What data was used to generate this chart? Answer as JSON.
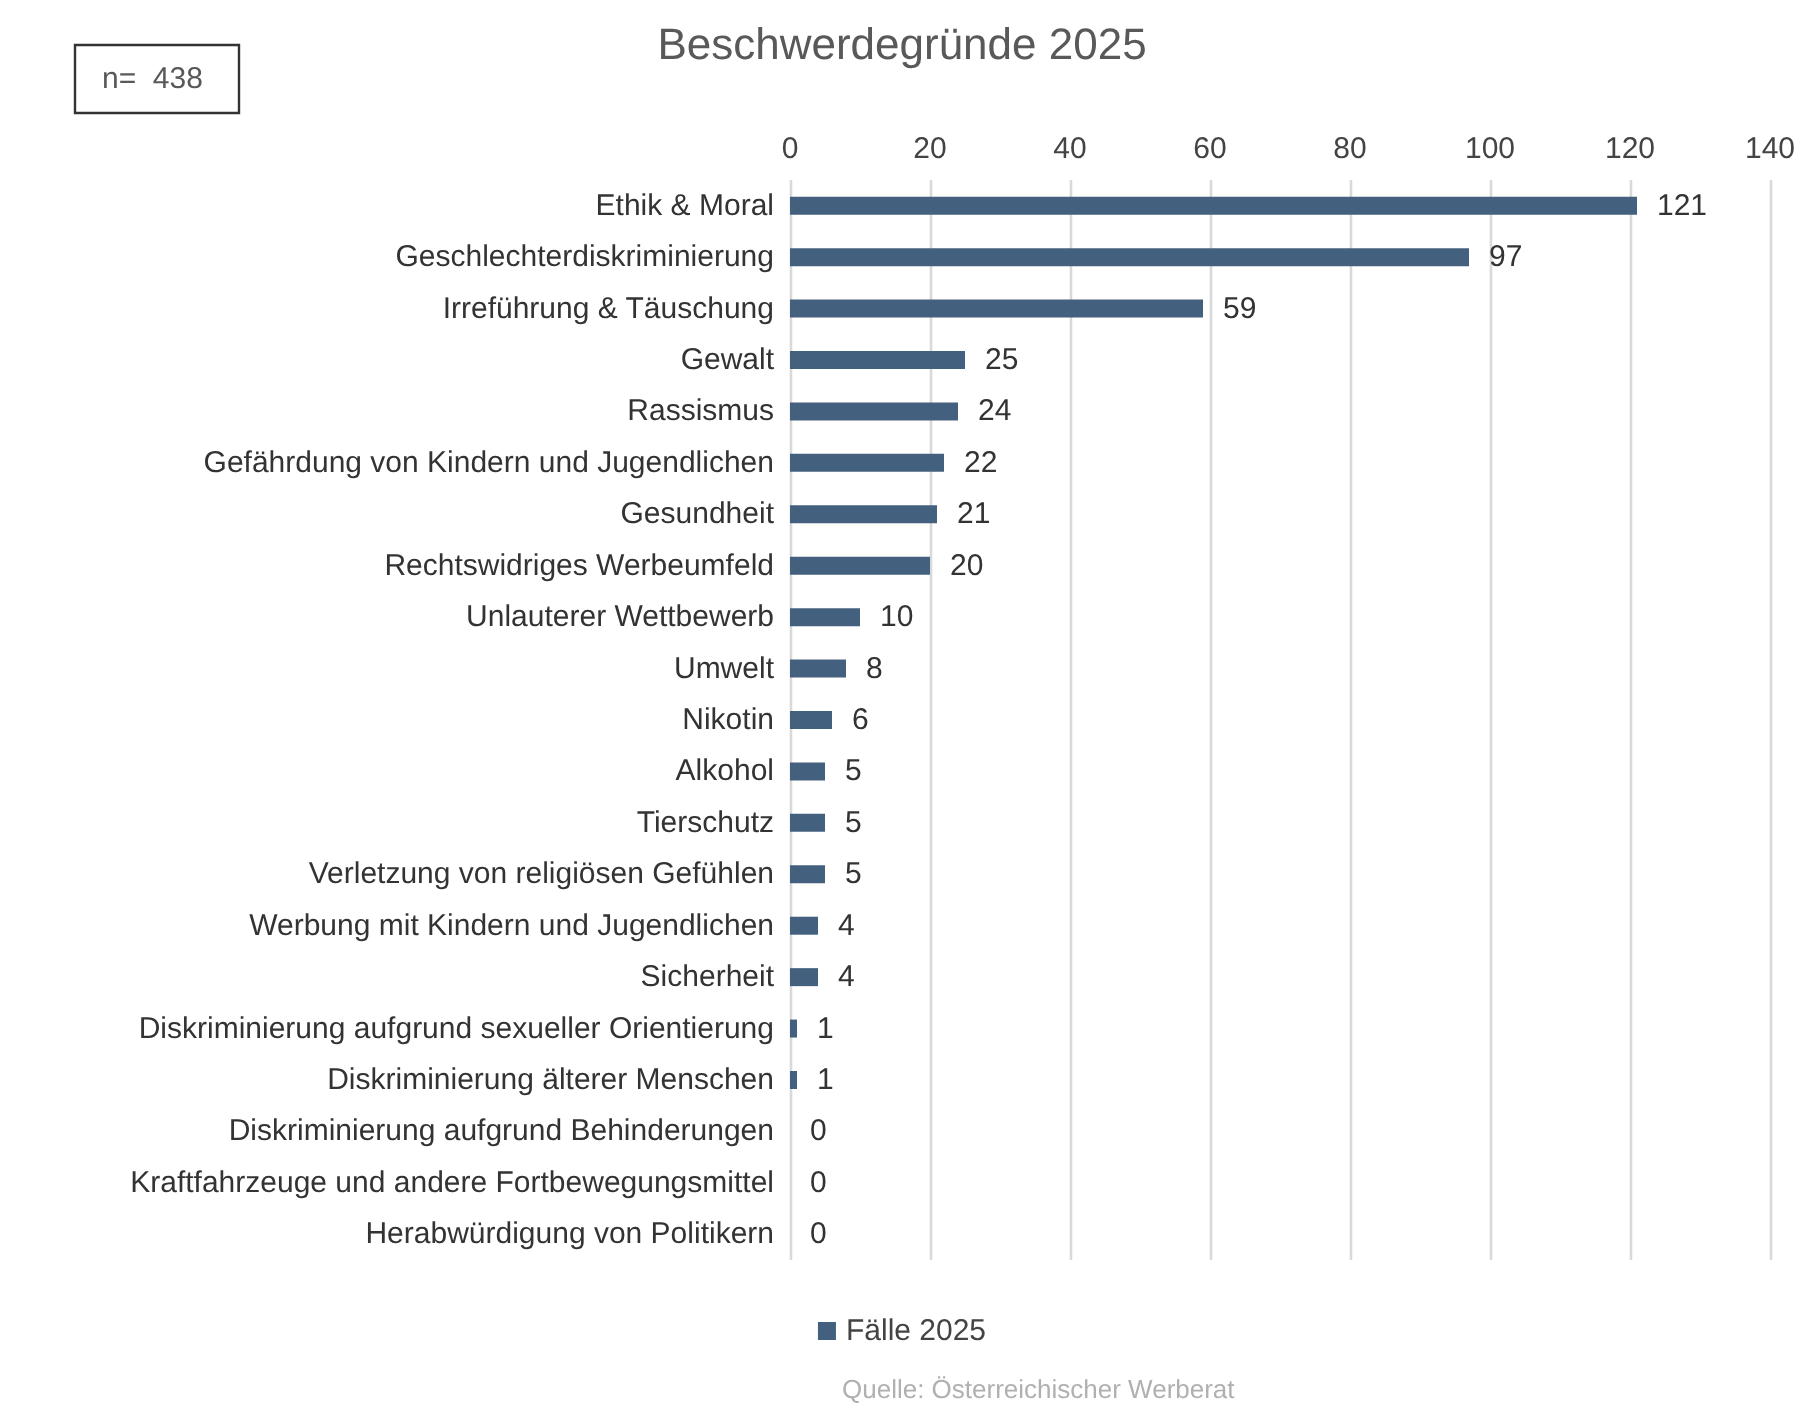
{
  "chart_data": {
    "type": "bar",
    "orientation": "horizontal",
    "title": "Beschwerdegründe 2025",
    "categories": [
      "Ethik & Moral",
      "Geschlechterdiskriminierung",
      "Irreführung & Täuschung",
      "Gewalt",
      "Rassismus",
      "Gefährdung von Kindern und Jugendlichen",
      "Gesundheit",
      "Rechtswidriges Werbeumfeld",
      "Unlauterer Wettbewerb",
      "Umwelt",
      "Nikotin",
      "Alkohol",
      "Tierschutz",
      "Verletzung von religiösen Gefühlen",
      "Werbung mit Kindern und Jugendlichen",
      "Sicherheit",
      "Diskriminierung aufgrund sexueller Orientierung",
      "Diskriminierung älterer Menschen",
      "Diskriminierung aufgrund Behinderungen",
      "Kraftfahrzeuge und andere Fortbewegungsmittel",
      "Herabwürdigung von Politikern"
    ],
    "series": [
      {
        "name": "Fälle 2025",
        "color": "#44607f",
        "values": [
          121,
          97,
          59,
          25,
          24,
          22,
          21,
          20,
          10,
          8,
          6,
          5,
          5,
          5,
          4,
          4,
          1,
          1,
          0,
          0,
          0
        ]
      }
    ],
    "xlim": [
      0,
      140
    ],
    "xticks": [
      0,
      20,
      40,
      60,
      80,
      100,
      120,
      140
    ],
    "grid": "x",
    "legend": "bottom",
    "data_labels": true,
    "annotations": [
      "n=  438",
      "Quelle: Österreichischer Werberat"
    ]
  }
}
